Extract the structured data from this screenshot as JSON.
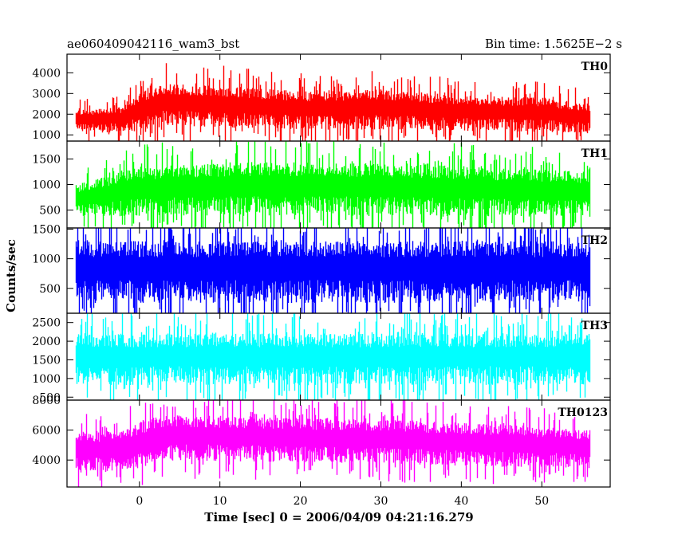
{
  "header": {
    "title": "ae060409042116_wam3_bst",
    "bin_time": "Bin time: 1.5625E−2 s"
  },
  "chart_data": {
    "type": "line",
    "xlabel": "Time [sec] 0 = 2006/04/09 04:21:16.279",
    "ylabel": "Counts/sec",
    "xlim": [
      -9,
      58.5
    ],
    "x_ticks": [
      0,
      10,
      20,
      30,
      40,
      50
    ],
    "x_range_data": [
      -8,
      56
    ],
    "panels": [
      {
        "name": "TH0",
        "color": "#ff0000",
        "ylim": [
          700,
          4900
        ],
        "y_ticks": [
          1000,
          2000,
          3000,
          4000
        ],
        "profile": [
          {
            "t": -8,
            "low": 1100,
            "high": 2200
          },
          {
            "t": -2,
            "low": 1000,
            "high": 2400
          },
          {
            "t": -0.2,
            "low": 1100,
            "high": 3000
          },
          {
            "t": 3,
            "low": 1300,
            "high": 3500
          },
          {
            "t": 10,
            "low": 1250,
            "high": 3400
          },
          {
            "t": 20,
            "low": 1150,
            "high": 3100
          },
          {
            "t": 30,
            "low": 1150,
            "high": 3200
          },
          {
            "t": 40,
            "low": 1100,
            "high": 2900
          },
          {
            "t": 50,
            "low": 1050,
            "high": 2800
          },
          {
            "t": 56,
            "low": 1000,
            "high": 2500
          }
        ]
      },
      {
        "name": "TH1",
        "color": "#00ff00",
        "ylim": [
          150,
          1850
        ],
        "y_ticks": [
          500,
          1000,
          1500
        ],
        "profile": [
          {
            "t": -8,
            "low": 350,
            "high": 1000
          },
          {
            "t": 0,
            "low": 330,
            "high": 1350
          },
          {
            "t": 15,
            "low": 330,
            "high": 1450
          },
          {
            "t": 35,
            "low": 320,
            "high": 1400
          },
          {
            "t": 56,
            "low": 320,
            "high": 1250
          }
        ]
      },
      {
        "name": "TH2",
        "color": "#0000ff",
        "ylim": [
          80,
          1520
        ],
        "y_ticks": [
          500,
          1000,
          1500
        ],
        "profile": [
          {
            "t": -8,
            "low": 200,
            "high": 1300
          },
          {
            "t": 56,
            "low": 200,
            "high": 1300
          }
        ]
      },
      {
        "name": "TH3",
        "color": "#00ffff",
        "ylim": [
          420,
          2750
        ],
        "y_ticks": [
          500,
          1000,
          1500,
          2000,
          2500
        ],
        "profile": [
          {
            "t": -8,
            "low": 750,
            "high": 2200
          },
          {
            "t": 56,
            "low": 750,
            "high": 2200
          }
        ]
      },
      {
        "name": "TH0123",
        "color": "#ff00ff",
        "ylim": [
          2200,
          8000
        ],
        "y_ticks": [
          4000,
          6000,
          8000
        ],
        "profile": [
          {
            "t": -8,
            "low": 3000,
            "high": 5900
          },
          {
            "t": -2,
            "low": 3000,
            "high": 6000
          },
          {
            "t": -0.2,
            "low": 3300,
            "high": 6500
          },
          {
            "t": 3,
            "low": 3800,
            "high": 7000
          },
          {
            "t": 15,
            "low": 3700,
            "high": 6900
          },
          {
            "t": 30,
            "low": 3600,
            "high": 6700
          },
          {
            "t": 45,
            "low": 3400,
            "high": 6400
          },
          {
            "t": 56,
            "low": 3300,
            "high": 6000
          }
        ]
      }
    ]
  }
}
